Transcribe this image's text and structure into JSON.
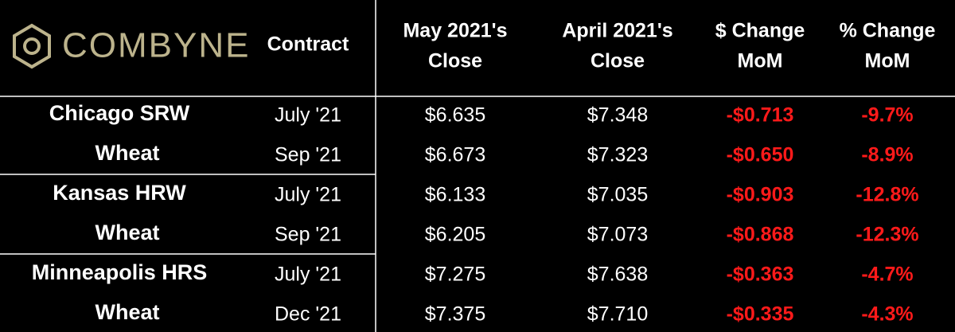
{
  "header": {
    "logo": "COMBYNE",
    "columns": [
      [
        "Contract"
      ],
      [
        "May 2021's",
        "Close"
      ],
      [
        "April 2021's",
        "Close"
      ],
      [
        "$ Change",
        "MoM"
      ],
      [
        "% Change",
        "MoM"
      ]
    ]
  },
  "groups": [
    {
      "name_lines": [
        "Chicago SRW",
        "Wheat"
      ],
      "rows": [
        [
          "July '21",
          "$6.635",
          "$7.348",
          "-$0.713",
          "-9.7%"
        ],
        [
          "Sep '21",
          "$6.673",
          "$7.323",
          "-$0.650",
          "-8.9%"
        ]
      ]
    },
    {
      "name_lines": [
        "Kansas HRW",
        "Wheat"
      ],
      "rows": [
        [
          "July '21",
          "$6.133",
          "$7.035",
          "-$0.903",
          "-12.8%"
        ],
        [
          "Sep '21",
          "$6.205",
          "$7.073",
          "-$0.868",
          "-12.3%"
        ]
      ]
    },
    {
      "name_lines": [
        "Minneapolis HRS",
        "Wheat"
      ],
      "rows": [
        [
          "July '21",
          "$7.275",
          "$7.638",
          "-$0.363",
          "-4.7%"
        ],
        [
          "Dec '21",
          "$7.375",
          "$7.710",
          "-$0.335",
          "-4.3%"
        ]
      ]
    }
  ]
}
